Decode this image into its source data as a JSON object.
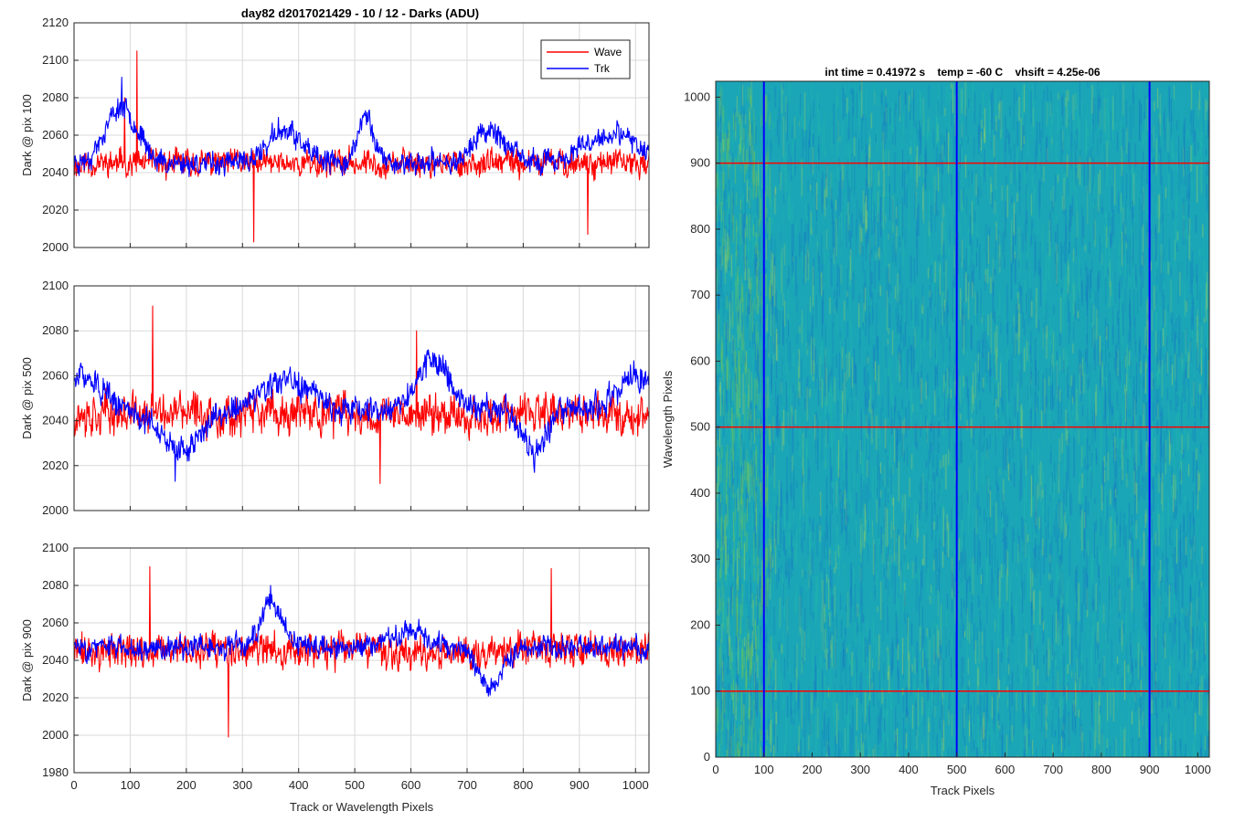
{
  "figure_title": "day82 d2017021429 - 10 / 12 - Darks (ADU)",
  "colors": {
    "wave": "#ff0000",
    "trk": "#0000ff",
    "grid": "#d9d9d9",
    "axis": "#262626"
  },
  "chart_data": [
    {
      "type": "line",
      "title": "day82 d2017021429 - 10 / 12 - Darks (ADU)",
      "ylabel": "Dark @ pix 100",
      "xlabel": "",
      "xlim": [
        0,
        1024
      ],
      "ylim": [
        2000,
        2120
      ],
      "xticks": [
        0,
        100,
        200,
        300,
        400,
        500,
        600,
        700,
        800,
        900,
        1000
      ],
      "yticks": [
        2000,
        2020,
        2040,
        2060,
        2080,
        2100,
        2120
      ],
      "show_xtick_labels": false,
      "legend": {
        "position": "top-right",
        "entries": [
          "Wave",
          "Trk"
        ]
      },
      "series": [
        {
          "name": "Wave",
          "color": "#ff0000",
          "baseline": 2045,
          "noise": 7,
          "seed": 11,
          "spikes": [
            [
              112,
              2105
            ],
            [
              320,
              2003
            ],
            [
              915,
              2007
            ],
            [
              90,
              2080
            ]
          ],
          "bumps": []
        },
        {
          "name": "Trk",
          "color": "#0000ff",
          "baseline": 2045,
          "noise": 6,
          "seed": 23,
          "spikes": [
            [
              85,
              2091
            ]
          ],
          "bumps": [
            [
              85,
              40,
              30
            ],
            [
              375,
              40,
              18
            ],
            [
              520,
              20,
              25
            ],
            [
              740,
              40,
              18
            ],
            [
              960,
              70,
              15
            ]
          ]
        }
      ]
    },
    {
      "type": "line",
      "title": "",
      "ylabel": "Dark @ pix 500",
      "xlabel": "",
      "xlim": [
        0,
        1024
      ],
      "ylim": [
        2000,
        2100
      ],
      "xticks": [
        0,
        100,
        200,
        300,
        400,
        500,
        600,
        700,
        800,
        900,
        1000
      ],
      "yticks": [
        2000,
        2020,
        2040,
        2060,
        2080,
        2100
      ],
      "show_xtick_labels": false,
      "series": [
        {
          "name": "Wave",
          "color": "#ff0000",
          "baseline": 2043,
          "noise": 9,
          "seed": 37,
          "spikes": [
            [
              140,
              2091
            ],
            [
              545,
              2012
            ],
            [
              610,
              2080
            ]
          ],
          "bumps": []
        },
        {
          "name": "Trk",
          "color": "#0000ff",
          "baseline": 2045,
          "noise": 6,
          "seed": 51,
          "spikes": [
            [
              180,
              2013
            ],
            [
              820,
              2017
            ]
          ],
          "bumps": [
            [
              20,
              40,
              15
            ],
            [
              190,
              50,
              -18
            ],
            [
              380,
              60,
              12
            ],
            [
              640,
              40,
              22
            ],
            [
              820,
              30,
              -18
            ],
            [
              1000,
              40,
              15
            ]
          ]
        }
      ]
    },
    {
      "type": "line",
      "title": "",
      "ylabel": "Dark @ pix 900",
      "xlabel": "Track or Wavelength Pixels",
      "xlim": [
        0,
        1024
      ],
      "ylim": [
        1980,
        2100
      ],
      "xticks": [
        0,
        100,
        200,
        300,
        400,
        500,
        600,
        700,
        800,
        900,
        1000
      ],
      "yticks": [
        1980,
        2000,
        2020,
        2040,
        2060,
        2080,
        2100
      ],
      "show_xtick_labels": true,
      "series": [
        {
          "name": "Wave",
          "color": "#ff0000",
          "baseline": 2045,
          "noise": 9,
          "seed": 71,
          "spikes": [
            [
              275,
              1999
            ],
            [
              135,
              2090
            ],
            [
              850,
              2089
            ]
          ],
          "bumps": []
        },
        {
          "name": "Trk",
          "color": "#0000ff",
          "baseline": 2047,
          "noise": 6,
          "seed": 83,
          "spikes": [
            [
              350,
              2080
            ]
          ],
          "bumps": [
            [
              350,
              25,
              25
            ],
            [
              740,
              30,
              -20
            ],
            [
              600,
              40,
              10
            ]
          ]
        }
      ]
    },
    {
      "type": "heatmap",
      "title": "int time = 0.41972 s    temp = -60 C    vhsift = 4.25e-06",
      "xlabel": "Track Pixels",
      "ylabel": "Wavelength Pixels",
      "xlim": [
        0,
        1024
      ],
      "ylim": [
        0,
        1024
      ],
      "xticks": [
        0,
        100,
        200,
        300,
        400,
        500,
        600,
        700,
        800,
        900,
        1000
      ],
      "yticks": [
        0,
        100,
        200,
        300,
        400,
        500,
        600,
        700,
        800,
        900,
        1000
      ],
      "colormap": "parula-like teal",
      "vertical_markers": [
        100,
        500,
        900
      ],
      "horizontal_markers": [
        100,
        500,
        900
      ],
      "vertical_marker_color": "#0000ff",
      "horizontal_marker_color": "#ff0000"
    }
  ]
}
